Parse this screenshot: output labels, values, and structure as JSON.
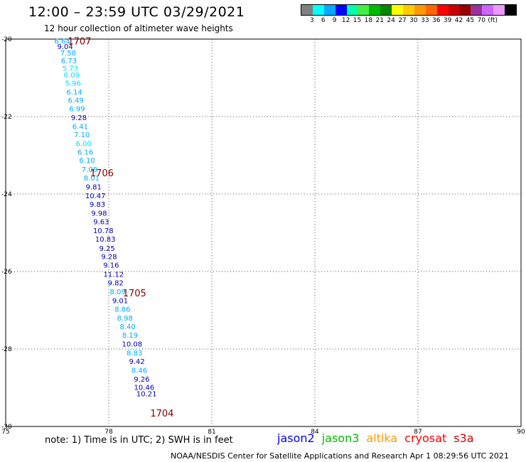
{
  "header": {
    "title": "12:00 – 23:59 UTC 03/29/2021",
    "subtitle": "12 hour collection of altimeter wave heights"
  },
  "color_scale": {
    "colors": [
      "#808080",
      "#00ffff",
      "#00aaff",
      "#0000ff",
      "#00ffaa",
      "#44ee44",
      "#00bb00",
      "#008800",
      "#ffff00",
      "#ffcc00",
      "#ff9900",
      "#ff6600",
      "#ff0000",
      "#cc0000",
      "#990000",
      "#993399",
      "#cc66ff",
      "#ee99ff",
      "#000000"
    ],
    "labels": [
      "3",
      "6",
      "9",
      "12",
      "15",
      "18",
      "21",
      "24",
      "27",
      "30",
      "33",
      "36",
      "39",
      "42",
      "45",
      "70",
      "(ft)"
    ]
  },
  "note": "note:  1) Time is in UTC;  2) SWH is in feet",
  "satellites": [
    {
      "name": "jason2",
      "color": "#0000ff"
    },
    {
      "name": "jason3",
      "color": "#00bb00"
    },
    {
      "name": "altika",
      "color": "#ff9900"
    },
    {
      "name": "cryosat",
      "color": "#ff0000"
    },
    {
      "name": "s3a",
      "color": "#cc0000"
    }
  ],
  "footer": "NOAA/NESDIS Center for Satellite Applications and Research   Apr  1 08:29:56 UTC 2021",
  "chart_data": {
    "type": "scatter",
    "xlim": [
      75,
      90
    ],
    "ylim": [
      -30,
      -20
    ],
    "x_ticks": [
      "75",
      "78",
      "81",
      "84",
      "87",
      "90"
    ],
    "y_ticks": [
      "-20",
      "-22",
      "-24",
      "-26",
      "-28",
      "-30"
    ],
    "grid": "dotted",
    "points": [
      {
        "x": 76.65,
        "y": -20.05,
        "label": "6.64",
        "color": "#00aaff"
      },
      {
        "x": 76.73,
        "y": -20.18,
        "label": "9.04",
        "color": "#0000aa"
      },
      {
        "x": 76.82,
        "y": -20.35,
        "label": "7.58",
        "color": "#00aaff"
      },
      {
        "x": 76.84,
        "y": -20.55,
        "label": "6.73",
        "color": "#00aaff"
      },
      {
        "x": 76.88,
        "y": -20.74,
        "label": "5.73",
        "color": "#00ddff"
      },
      {
        "x": 76.92,
        "y": -20.92,
        "label": "6.09",
        "color": "#00ddff"
      },
      {
        "x": 76.96,
        "y": -21.13,
        "label": "5.96",
        "color": "#00ddff"
      },
      {
        "x": 77.0,
        "y": -21.36,
        "label": "6.14",
        "color": "#00aaff"
      },
      {
        "x": 77.04,
        "y": -21.57,
        "label": "6.49",
        "color": "#00aaff"
      },
      {
        "x": 77.08,
        "y": -21.79,
        "label": "6.99",
        "color": "#00aaff"
      },
      {
        "x": 77.13,
        "y": -22.02,
        "label": "9.28",
        "color": "#0000aa"
      },
      {
        "x": 77.17,
        "y": -22.25,
        "label": "6.41",
        "color": "#00aaff"
      },
      {
        "x": 77.22,
        "y": -22.46,
        "label": "7.10",
        "color": "#00aaff"
      },
      {
        "x": 77.27,
        "y": -22.69,
        "label": "6.00",
        "color": "#00ddff"
      },
      {
        "x": 77.32,
        "y": -22.91,
        "label": "6.16",
        "color": "#00aaff"
      },
      {
        "x": 77.37,
        "y": -23.12,
        "label": "6.10",
        "color": "#00aaff"
      },
      {
        "x": 77.44,
        "y": -23.36,
        "label": "7.08",
        "color": "#00aaff"
      },
      {
        "x": 77.5,
        "y": -23.58,
        "label": "8.01",
        "color": "#00aaff"
      },
      {
        "x": 77.56,
        "y": -23.81,
        "label": "9.81",
        "color": "#0000aa"
      },
      {
        "x": 77.61,
        "y": -24.04,
        "label": "10.47",
        "color": "#0000aa"
      },
      {
        "x": 77.67,
        "y": -24.26,
        "label": "9.83",
        "color": "#0000aa"
      },
      {
        "x": 77.72,
        "y": -24.49,
        "label": "9.98",
        "color": "#0000aa"
      },
      {
        "x": 77.78,
        "y": -24.71,
        "label": "9.63",
        "color": "#0000aa"
      },
      {
        "x": 77.84,
        "y": -24.94,
        "label": "10.78",
        "color": "#0000aa"
      },
      {
        "x": 77.9,
        "y": -25.16,
        "label": "10.83",
        "color": "#0000aa"
      },
      {
        "x": 77.95,
        "y": -25.39,
        "label": "9.25",
        "color": "#0000aa"
      },
      {
        "x": 78.01,
        "y": -25.61,
        "label": "9.28",
        "color": "#0000aa"
      },
      {
        "x": 78.07,
        "y": -25.83,
        "label": "9.16",
        "color": "#0000aa"
      },
      {
        "x": 78.14,
        "y": -26.06,
        "label": "11.12",
        "color": "#0000aa"
      },
      {
        "x": 78.2,
        "y": -26.28,
        "label": "9.82",
        "color": "#0000aa"
      },
      {
        "x": 78.26,
        "y": -26.51,
        "label": "8.09",
        "color": "#00aaff"
      },
      {
        "x": 78.33,
        "y": -26.74,
        "label": "9.01",
        "color": "#0000aa"
      },
      {
        "x": 78.4,
        "y": -26.96,
        "label": "8.86",
        "color": "#00aaff"
      },
      {
        "x": 78.47,
        "y": -27.19,
        "label": "8.98",
        "color": "#00aaff"
      },
      {
        "x": 78.55,
        "y": -27.41,
        "label": "8.40",
        "color": "#00aaff"
      },
      {
        "x": 78.62,
        "y": -27.63,
        "label": "8.19",
        "color": "#00aaff"
      },
      {
        "x": 78.68,
        "y": -27.86,
        "label": "10.08",
        "color": "#0000aa"
      },
      {
        "x": 78.75,
        "y": -28.09,
        "label": "8.83",
        "color": "#00aaff"
      },
      {
        "x": 78.82,
        "y": -28.31,
        "label": "9.42",
        "color": "#0000aa"
      },
      {
        "x": 78.89,
        "y": -28.54,
        "label": "8.46",
        "color": "#00aaff"
      },
      {
        "x": 78.96,
        "y": -28.77,
        "label": "9.26",
        "color": "#0000aa"
      },
      {
        "x": 79.03,
        "y": -28.98,
        "label": "10.46",
        "color": "#0000aa"
      },
      {
        "x": 79.1,
        "y": -29.15,
        "label": "10.21",
        "color": "#0000aa"
      }
    ],
    "pass_labels": [
      {
        "x": 77.15,
        "y": -20.05,
        "label": "1707"
      },
      {
        "x": 77.8,
        "y": -23.45,
        "label": "1706"
      },
      {
        "x": 78.75,
        "y": -26.55,
        "label": "1705"
      },
      {
        "x": 79.55,
        "y": -29.65,
        "label": "1704"
      }
    ]
  }
}
